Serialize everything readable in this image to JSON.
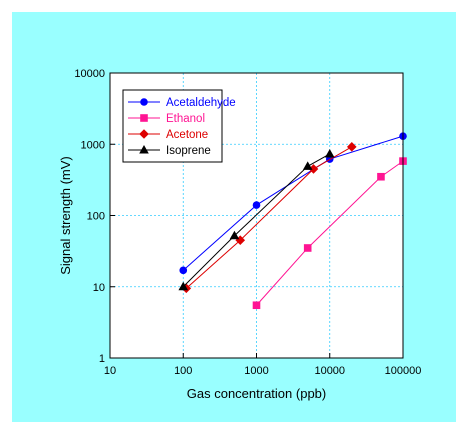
{
  "chart_data": {
    "type": "line",
    "xlabel": "Gas concentration (ppb)",
    "ylabel": "Signal strength (mV)",
    "x_scale": "log",
    "y_scale": "log",
    "xlim": [
      10,
      100000
    ],
    "ylim": [
      1,
      10000
    ],
    "x_ticks": [
      "10",
      "100",
      "1000",
      "10000",
      "100000"
    ],
    "y_ticks": [
      "1",
      "10",
      "100",
      "1000",
      "10000"
    ],
    "grid": true,
    "legend_position": "top-left",
    "series": [
      {
        "name": "Acetaldehyde",
        "color": "#0000ff",
        "marker": "circle",
        "points": [
          [
            100,
            17
          ],
          [
            1000,
            140
          ],
          [
            10000,
            620
          ],
          [
            100000,
            1300
          ]
        ]
      },
      {
        "name": "Ethanol",
        "color": "#ff1493",
        "marker": "square",
        "points": [
          [
            1000,
            5.5
          ],
          [
            5000,
            35
          ],
          [
            50000,
            350
          ],
          [
            100000,
            580
          ]
        ]
      },
      {
        "name": "Acetone",
        "color": "#dd0000",
        "marker": "diamond",
        "points": [
          [
            110,
            9.5
          ],
          [
            600,
            45
          ],
          [
            6000,
            450
          ],
          [
            20000,
            920
          ]
        ]
      },
      {
        "name": "Isoprene",
        "color": "#000000",
        "marker": "triangle",
        "points": [
          [
            100,
            10
          ],
          [
            500,
            52
          ],
          [
            5000,
            490
          ],
          [
            10000,
            730
          ]
        ]
      }
    ]
  }
}
